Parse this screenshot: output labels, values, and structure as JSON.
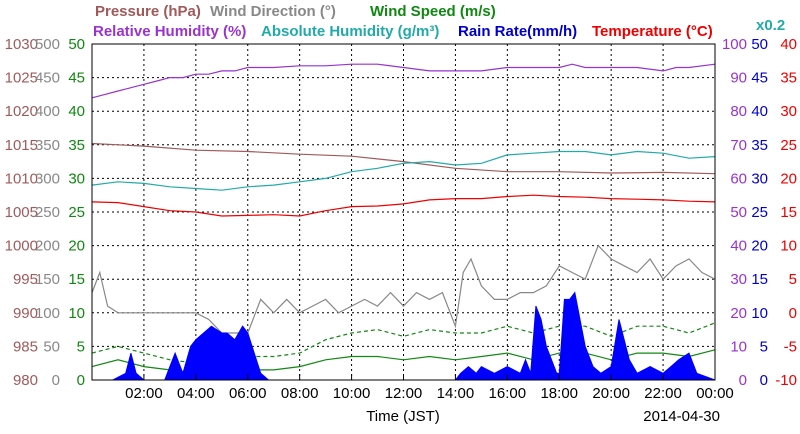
{
  "chart_data": {
    "type": "line",
    "date": "2014-04-30",
    "xlabel": "Time (JST)",
    "x_ticks": [
      "02:00",
      "04:00",
      "06:00",
      "08:00",
      "10:00",
      "12:00",
      "14:00",
      "16:00",
      "18:00",
      "20:00",
      "22:00",
      "00:00"
    ],
    "x_range_hours": [
      0,
      24
    ],
    "grid": true,
    "legend_row1": [
      {
        "text": "Pressure (hPa)",
        "color": "#a05a5a"
      },
      {
        "text": "Wind Direction (°)",
        "color": "#888888"
      },
      {
        "text": "Wind Speed (m/s)",
        "color": "#118811"
      }
    ],
    "legend_row2": [
      {
        "text": "Relative Humidity (%)",
        "color": "#9933cc"
      },
      {
        "text": "Absolute Humidity (g/m³)",
        "color": "#22aaaa"
      },
      {
        "text": "Rain Rate(mm/h)",
        "color": "#0000cc"
      },
      {
        "text": "Temperature (°C)",
        "color": "#ee0000"
      }
    ],
    "scale_note": {
      "text": "x0.2",
      "color": "#22aaaa"
    },
    "axes": {
      "pressure": {
        "ticks": [
          "1030",
          "1025",
          "1020",
          "1015",
          "1010",
          "1005",
          "1000",
          "995",
          "990",
          "985",
          "980"
        ],
        "range": [
          980,
          1030
        ],
        "color": "#a05a5a"
      },
      "wind_direction": {
        "ticks": [
          "500",
          "450",
          "400",
          "350",
          "300",
          "250",
          "200",
          "150",
          "100",
          "50",
          "0"
        ],
        "range": [
          0,
          500
        ],
        "color": "#888888"
      },
      "wind_speed": {
        "ticks": [
          "50",
          "45",
          "40",
          "35",
          "30",
          "25",
          "20",
          "15",
          "10",
          "5",
          "0"
        ],
        "range": [
          0,
          50
        ],
        "color": "#118811"
      },
      "relative_humidity": {
        "ticks": [
          "100",
          "90",
          "80",
          "70",
          "60",
          "50",
          "40",
          "30",
          "20",
          "10",
          "0"
        ],
        "range": [
          0,
          100
        ],
        "color": "#9933cc"
      },
      "rain_rate": {
        "ticks": [
          "50",
          "45",
          "40",
          "35",
          "30",
          "25",
          "20",
          "15",
          "10",
          "5",
          "0"
        ],
        "range": [
          0,
          50
        ],
        "color": "#0000cc"
      },
      "temperature": {
        "ticks": [
          "40",
          "35",
          "30",
          "25",
          "20",
          "15",
          "10",
          "5",
          "0",
          "-5",
          "-10"
        ],
        "range": [
          -10,
          40
        ],
        "color": "#ee0000"
      }
    },
    "series": [
      {
        "name": "Relative Humidity",
        "key": "rh",
        "axis": "relative_humidity",
        "color": "#9933cc",
        "x": [
          0,
          0.5,
          1,
          1.5,
          2,
          2.5,
          3,
          3.5,
          4,
          4.5,
          5,
          5.5,
          6,
          7,
          8,
          9,
          10,
          11,
          12,
          13,
          14,
          15,
          16,
          17,
          18,
          18.5,
          19,
          20,
          21,
          22,
          22.5,
          23,
          24
        ],
        "y": [
          84,
          85,
          86,
          87,
          88,
          89,
          90,
          90,
          91,
          91,
          92,
          92,
          93,
          93,
          93.5,
          93.5,
          94,
          94,
          93,
          92,
          92,
          92,
          93,
          93,
          93,
          94,
          93,
          93,
          93,
          92,
          93,
          93,
          94
        ]
      },
      {
        "name": "Pressure",
        "key": "pressure",
        "axis": "pressure",
        "color": "#a05a5a",
        "x": [
          0,
          2,
          4,
          6,
          8,
          10,
          12,
          14,
          16,
          18,
          20,
          22,
          24
        ],
        "y": [
          1015.2,
          1014.8,
          1014.2,
          1014.0,
          1013.6,
          1013.3,
          1012.5,
          1011.5,
          1011.0,
          1011.0,
          1010.8,
          1010.9,
          1010.7
        ]
      },
      {
        "name": "Absolute Humidity",
        "key": "ah",
        "axis": "relative_humidity",
        "color": "#22aaaa",
        "x": [
          0,
          1,
          2,
          3,
          4,
          5,
          6,
          7,
          8,
          9,
          10,
          11,
          12,
          13,
          14,
          15,
          16,
          17,
          18,
          19,
          20,
          21,
          22,
          23,
          24
        ],
        "y": [
          58,
          59,
          58.5,
          57.5,
          57,
          56.5,
          57.5,
          58,
          59,
          60,
          62,
          63,
          64.5,
          65,
          64,
          64.5,
          67,
          67.5,
          68,
          68,
          67,
          68,
          67.5,
          66,
          66.5
        ]
      },
      {
        "name": "Temperature",
        "key": "temp",
        "axis": "temperature",
        "color": "#ee0000",
        "x": [
          0,
          1,
          2,
          3,
          4,
          5,
          6,
          7,
          8,
          9,
          10,
          11,
          12,
          13,
          14,
          15,
          16,
          17,
          18,
          19,
          20,
          21,
          22,
          23,
          24
        ],
        "y": [
          16.5,
          16.4,
          15.8,
          15.2,
          15.0,
          14.4,
          14.5,
          14.6,
          14.4,
          15.2,
          15.8,
          15.9,
          16.2,
          16.8,
          17.0,
          17.0,
          17.3,
          17.5,
          17.3,
          17.2,
          17.0,
          16.9,
          16.8,
          16.6,
          16.5
        ]
      },
      {
        "name": "Wind Direction",
        "key": "wd",
        "axis": "wind_direction",
        "color": "#888888",
        "x": [
          0,
          0.3,
          0.6,
          1,
          2,
          3,
          4,
          4.5,
          5,
          5.5,
          6,
          6.5,
          7,
          7.5,
          8,
          8.5,
          9,
          9.5,
          10,
          10.5,
          11,
          11.5,
          12,
          12.5,
          13,
          13.5,
          14,
          14.3,
          14.6,
          15,
          15.5,
          16,
          16.5,
          17,
          17.5,
          18,
          18.5,
          19,
          19.5,
          20,
          20.5,
          21,
          21.5,
          22,
          22.5,
          23,
          23.5,
          24
        ],
        "y": [
          130,
          160,
          110,
          100,
          100,
          100,
          100,
          90,
          70,
          70,
          70,
          120,
          100,
          120,
          100,
          110,
          120,
          100,
          110,
          120,
          110,
          130,
          110,
          130,
          120,
          130,
          80,
          160,
          180,
          140,
          120,
          120,
          130,
          130,
          140,
          170,
          160,
          150,
          200,
          180,
          170,
          160,
          180,
          150,
          170,
          180,
          160,
          150
        ]
      },
      {
        "name": "Wind Speed",
        "key": "ws",
        "axis": "wind_speed",
        "color": "#118811",
        "x": [
          0,
          1,
          2,
          3,
          4,
          5,
          6,
          7,
          8,
          9,
          10,
          11,
          12,
          13,
          14,
          15,
          16,
          17,
          18,
          19,
          20,
          21,
          22,
          23,
          24
        ],
        "y": [
          2,
          3,
          2,
          1.5,
          1,
          1,
          1.5,
          1.5,
          2,
          3,
          3.5,
          3.5,
          3,
          3.5,
          3,
          3.5,
          4,
          3,
          4,
          4,
          3,
          4,
          4,
          3.5,
          4.5
        ]
      },
      {
        "name": "Wind Speed Max",
        "key": "ws_max",
        "axis": "wind_speed",
        "color": "#118811",
        "dashed": true,
        "x": [
          0,
          1,
          2,
          3,
          4,
          5,
          6,
          7,
          8,
          9,
          10,
          11,
          12,
          13,
          14,
          15,
          16,
          17,
          18,
          19,
          20,
          21,
          22,
          23,
          24
        ],
        "y": [
          4,
          5,
          4,
          3,
          2.5,
          2.5,
          3.5,
          3.5,
          4,
          6,
          7,
          7.5,
          6.5,
          7.5,
          7,
          7,
          8,
          7,
          8,
          8,
          6.5,
          8,
          8,
          7,
          8.5
        ]
      },
      {
        "name": "Rain Rate",
        "key": "rain",
        "axis": "rain_rate",
        "color": "#0000ff",
        "type": "area",
        "x": [
          0,
          0.8,
          1.3,
          1.5,
          1.7,
          2.0,
          2.8,
          3.0,
          3.2,
          3.5,
          3.8,
          4.0,
          4.3,
          4.6,
          5.0,
          5.2,
          5.5,
          5.8,
          6.0,
          6.5,
          6.8,
          7.5,
          9.0,
          14.0,
          14.2,
          14.5,
          14.8,
          15.0,
          15.5,
          16.0,
          16.5,
          16.7,
          16.9,
          17.1,
          17.3,
          17.5,
          17.7,
          17.9,
          18.0,
          18.2,
          18.4,
          18.6,
          19.0,
          19.3,
          19.6,
          20.0,
          20.3,
          20.7,
          21.0,
          21.5,
          22.0,
          22.3,
          22.6,
          23.0,
          23.3,
          24.0
        ],
        "y": [
          0,
          0,
          1,
          4,
          1,
          0,
          0,
          2,
          4,
          1,
          5,
          6,
          7,
          8,
          7,
          7,
          6,
          8,
          7,
          1,
          0,
          0,
          0,
          0,
          1,
          2,
          1,
          2,
          1,
          2,
          1,
          3,
          1,
          11,
          9,
          5,
          3,
          1,
          1,
          12,
          12,
          13,
          5,
          2,
          1,
          2,
          9,
          3,
          1,
          2,
          1,
          2,
          3,
          4,
          1,
          0
        ]
      }
    ]
  }
}
